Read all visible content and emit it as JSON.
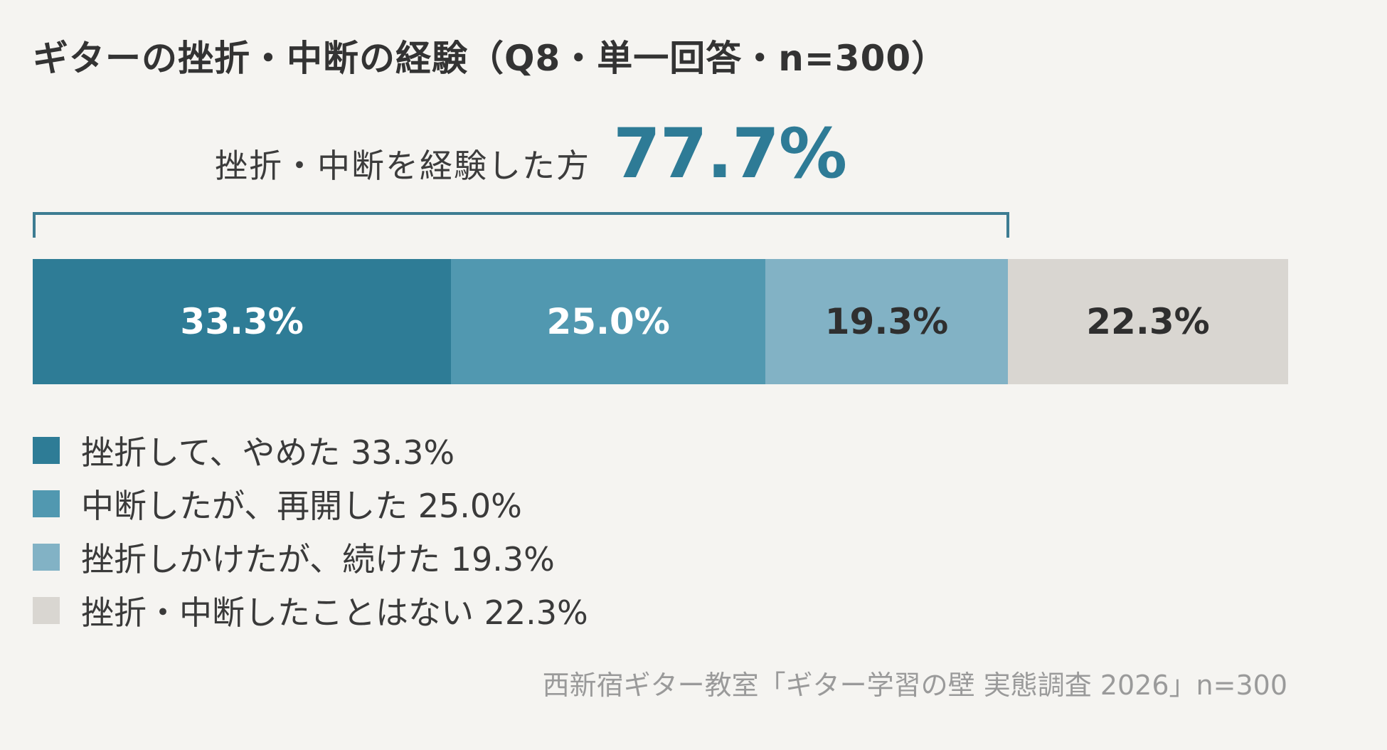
{
  "chart_data": {
    "type": "bar",
    "title": "ギターの挫折・中断の経験（Q8・単一回答・n=300）",
    "summary": {
      "label": "挫折・中断を経験した方",
      "value": "77.7%"
    },
    "categories": [
      "挫折して、やめた",
      "中断したが、再開した",
      "挫折しかけたが、続けた",
      "挫折・中断したことはない"
    ],
    "values": [
      33.3,
      25.0,
      19.3,
      22.3
    ],
    "bar_labels": [
      "33.3%",
      "25.0%",
      "19.3%",
      "22.3%"
    ],
    "legend": [
      "挫折して、やめた 33.3%",
      "中断したが、再開した 25.0%",
      "挫折しかけたが、続けた 19.3%",
      "挫折・中断したことはない 22.3%"
    ],
    "colors": [
      "#2e7c96",
      "#5198b0",
      "#82b2c5",
      "#d9d6d1"
    ],
    "label_colors": [
      "#ffffff",
      "#ffffff",
      "#2f2f2f",
      "#2f2f2f"
    ],
    "bracket_span": [
      0,
      3
    ],
    "source": "西新宿ギター教室「ギター学習の壁 実態調査 2026」n=300"
  }
}
